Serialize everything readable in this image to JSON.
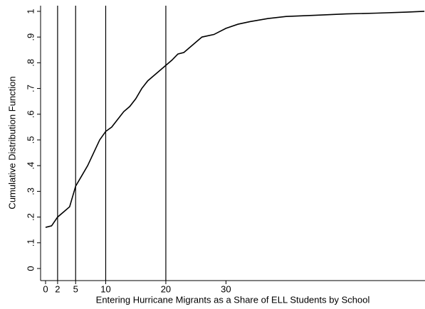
{
  "chart_data": {
    "type": "line",
    "x_label": "Entering Hurricane Migrants as a Share of ELL Students by School",
    "y_label": "Cumulative Distribution Function",
    "x": [
      0,
      1,
      2,
      3,
      4,
      5,
      6,
      7,
      8,
      9,
      10,
      11,
      12,
      13,
      14,
      15,
      16,
      17,
      18,
      19,
      20,
      21,
      22,
      23,
      24,
      25,
      26,
      28,
      30,
      32,
      34,
      37,
      40,
      45,
      50,
      55,
      60,
      63
    ],
    "values": [
      0.16,
      0.166,
      0.2,
      0.22,
      0.24,
      0.32,
      0.36,
      0.4,
      0.45,
      0.5,
      0.533,
      0.55,
      0.58,
      0.61,
      0.63,
      0.66,
      0.7,
      0.73,
      0.75,
      0.77,
      0.79,
      0.81,
      0.834,
      0.84,
      0.86,
      0.88,
      0.9,
      0.91,
      0.934,
      0.95,
      0.96,
      0.972,
      0.98,
      0.985,
      0.99,
      0.993,
      0.997,
      1.0
    ],
    "color": "#000000",
    "vlines": [
      2,
      5,
      10,
      20
    ],
    "xlim": [
      -0.83,
      63.1
    ],
    "ylim": [
      -0.047,
      1.022
    ],
    "xticks": [
      0,
      2,
      5,
      10,
      20,
      30
    ],
    "yticks": [
      0,
      {
        "value": 0.1,
        "label": ".1"
      },
      {
        "value": 0.2,
        "label": ".2"
      },
      {
        "value": 0.3,
        "label": ".3"
      },
      {
        "value": 0.4,
        "label": ".4"
      },
      {
        "value": 0.5,
        "label": ".5"
      },
      {
        "value": 0.6,
        "label": ".6"
      },
      {
        "value": 0.7,
        "label": ".7"
      },
      {
        "value": 0.8,
        "label": ".8"
      },
      {
        "value": 0.9,
        "label": ".9"
      },
      1
    ]
  }
}
